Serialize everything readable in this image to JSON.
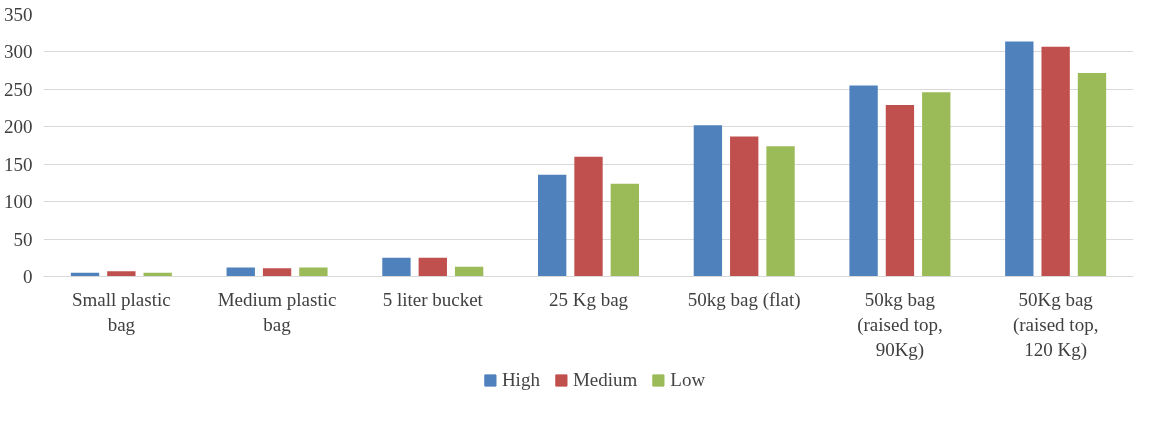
{
  "chart_data": {
    "type": "bar",
    "categories": [
      "Small plastic bag",
      "Medium plastic bag",
      "5 liter bucket",
      "25 Kg bag",
      "50kg bag (flat)",
      "50kg bag (raised top, 90Kg)",
      "50Kg bag (raised top, 120 Kg)"
    ],
    "series": [
      {
        "name": "High",
        "color": "#4f81bd",
        "values": [
          5,
          12,
          25,
          136,
          202,
          255,
          314
        ]
      },
      {
        "name": "Medium",
        "color": "#c0504d",
        "values": [
          7,
          11,
          25,
          160,
          187,
          229,
          307
        ]
      },
      {
        "name": "Low",
        "color": "#9bbb59",
        "values": [
          5,
          12,
          13,
          124,
          174,
          246,
          272
        ]
      }
    ],
    "ylim": [
      0,
      350
    ],
    "yticks": [
      0,
      50,
      100,
      150,
      200,
      250,
      300,
      350
    ],
    "grid": "y",
    "legend": "bottom"
  }
}
